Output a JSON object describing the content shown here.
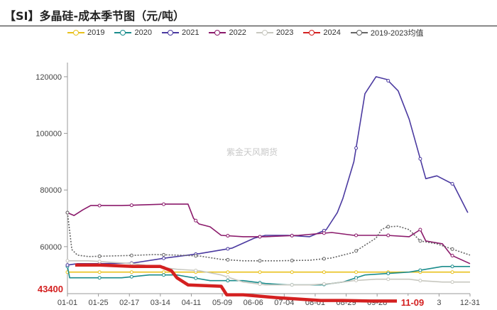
{
  "title": "【SI】多晶硅-成本季节图（元/吨）",
  "watermark": "紫金天风期货",
  "colors": {
    "2019": "#e8c11c",
    "2020": "#1a8c8c",
    "2021": "#4b3aa0",
    "2022": "#8b1a6b",
    "2023": "#c8c8c0",
    "2024": "#d42020",
    "avg": "#666666"
  },
  "chart_data": {
    "type": "line",
    "title": "【SI】多晶硅-成本季节图（元/吨）",
    "xlabel": "",
    "ylabel": "",
    "ylim": [
      43400,
      125000
    ],
    "grid": false,
    "legend_position": "top",
    "x_ticks": [
      "01-01",
      "01-25",
      "02-17",
      "03-14",
      "04-11",
      "05-09",
      "06-06",
      "07-04",
      "08-01",
      "08-29",
      "09-28",
      "",
      "3",
      "12-31"
    ],
    "y_ticks": [
      60000,
      80000,
      100000,
      120000
    ],
    "highlight_y_label": "43400",
    "highlight_x_label": "11-09",
    "series": [
      {
        "name": "2019",
        "key": "2019",
        "x": [
          1,
          365
        ],
        "y": [
          51000,
          51000
        ]
      },
      {
        "name": "2020",
        "key": "2020",
        "x": [
          1,
          3,
          50,
          75,
          100,
          130,
          160,
          180,
          200,
          215,
          230,
          250,
          270,
          290,
          310,
          340,
          365
        ],
        "y": [
          53000,
          49000,
          49000,
          50000,
          50000,
          48000,
          48000,
          47000,
          46500,
          46500,
          46500,
          47500,
          50000,
          50500,
          51000,
          53000,
          53000
        ]
      },
      {
        "name": "2021",
        "key": "2021",
        "x": [
          1,
          10,
          30,
          60,
          90,
          120,
          150,
          170,
          180,
          200,
          220,
          235,
          245,
          250,
          260,
          270,
          280,
          290,
          300,
          310,
          325,
          335,
          350,
          363
        ],
        "y": [
          53500,
          54000,
          54000,
          54200,
          56000,
          57500,
          59500,
          63000,
          64000,
          64000,
          63500,
          66000,
          72000,
          77000,
          90000,
          114000,
          120000,
          119000,
          115000,
          105000,
          84000,
          85000,
          82000,
          72000
        ]
      },
      {
        "name": "2022",
        "key": "2022",
        "x": [
          1,
          7,
          15,
          22,
          50,
          90,
          110,
          115,
          120,
          130,
          140,
          160,
          180,
          210,
          240,
          260,
          275,
          290,
          310,
          320,
          325,
          340,
          348,
          365
        ],
        "y": [
          72000,
          71000,
          73000,
          74500,
          74500,
          75000,
          75000,
          70000,
          68000,
          67000,
          64000,
          63500,
          63500,
          64000,
          65000,
          64000,
          64000,
          64000,
          63500,
          66000,
          62000,
          61000,
          57000,
          54000
        ]
      },
      {
        "name": "2023",
        "key": "2023",
        "x": [
          1,
          20,
          40,
          60,
          80,
          100,
          120,
          140,
          160,
          180,
          200,
          220,
          240,
          260,
          280,
          300,
          310,
          320,
          340,
          365
        ],
        "y": [
          55000,
          55000,
          54500,
          54000,
          53000,
          52000,
          51500,
          50000,
          47500,
          46500,
          46500,
          46500,
          47000,
          48000,
          48500,
          48500,
          48500,
          48000,
          47500,
          47500
        ]
      },
      {
        "name": "2024",
        "key": "2024",
        "x": [
          8,
          30,
          60,
          85,
          95,
          100,
          110,
          140,
          145,
          160,
          175,
          190,
          210,
          230,
          250,
          275,
          300
        ],
        "y": [
          53500,
          53500,
          53000,
          53000,
          51500,
          49000,
          46500,
          46000,
          43000,
          43000,
          42500,
          42000,
          41500,
          41000,
          41000,
          40800,
          40800
        ]
      },
      {
        "name": "2019-2023均值",
        "key": "avg",
        "x": [
          1,
          5,
          10,
          20,
          40,
          60,
          80,
          100,
          120,
          140,
          160,
          190,
          220,
          240,
          260,
          280,
          285,
          290,
          300,
          310,
          320,
          335,
          350,
          365
        ],
        "y": [
          72000,
          59000,
          57000,
          56500,
          56700,
          56900,
          57200,
          57000,
          56700,
          55500,
          55000,
          55000,
          55200,
          56000,
          58000,
          63000,
          66000,
          67000,
          67200,
          66000,
          62000,
          61000,
          59000,
          57000
        ]
      }
    ]
  },
  "legend": [
    {
      "key": "2019",
      "label": "2019"
    },
    {
      "key": "2020",
      "label": "2020"
    },
    {
      "key": "2021",
      "label": "2021"
    },
    {
      "key": "2022",
      "label": "2022"
    },
    {
      "key": "2023",
      "label": "2023"
    },
    {
      "key": "2024",
      "label": "2024"
    },
    {
      "key": "avg",
      "label": "2019-2023均值"
    }
  ]
}
